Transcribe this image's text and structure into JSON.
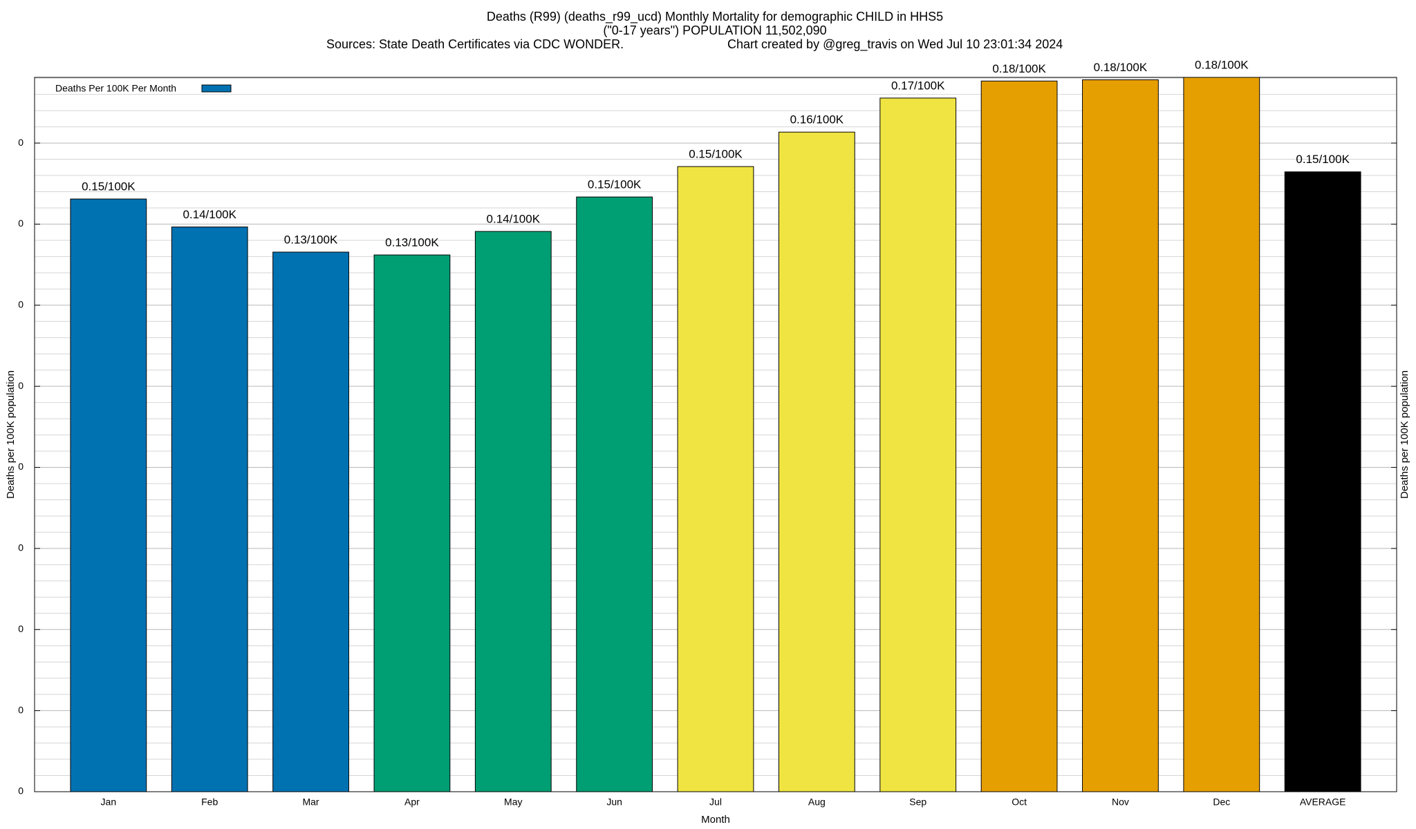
{
  "chart_data": {
    "type": "bar",
    "title": "Deaths (R99) (deaths_r99_ucd) Monthly Mortality for demographic CHILD in HHS5",
    "subtitle": "(\"0-17 years\") POPULATION 11,502,090",
    "sources": "Sources: State Death Certificates via CDC WONDER.",
    "credit": "Chart created by @greg_travis on Wed Jul 10 23:01:34 2024",
    "x_label": "Month",
    "y_label": "Deaths per 100K population",
    "y2_label": "Deaths per 100K population",
    "categories": [
      "Jan",
      "Feb",
      "Mar",
      "Apr",
      "May",
      "Jun",
      "Jul",
      "Aug",
      "Sep",
      "Oct",
      "Nov",
      "Dec",
      "AVERAGE"
    ],
    "series": [
      {
        "name": "Deaths Per 100K Per Month",
        "color": "#0072b2",
        "colors": [
          "#0072b2",
          "#0072b2",
          "#0072b2",
          "#009e73",
          "#009e73",
          "#009e73",
          "#f0e442",
          "#f0e442",
          "#f0e442",
          "#e69f00",
          "#e69f00",
          "#e69f00",
          "#000000"
        ],
        "values": [
          0.1462,
          0.1393,
          0.1331,
          0.1324,
          0.1382,
          0.1467,
          0.1542,
          0.1627,
          0.1711,
          0.1753,
          0.1756,
          0.1762,
          0.1529
        ],
        "value_labels": [
          "0.15/100K",
          "0.14/100K",
          "0.13/100K",
          "0.13/100K",
          "0.14/100K",
          "0.15/100K",
          "0.15/100K",
          "0.16/100K",
          "0.17/100K",
          "0.18/100K",
          "0.18/100K",
          "0.18/100K",
          "0.15/100K"
        ]
      }
    ],
    "ylim": [
      0,
      0.1762
    ],
    "yticks": [
      0,
      {
        "value": 0.02,
        "label": "0"
      },
      {
        "value": 0.04,
        "label": "0"
      },
      {
        "value": 0.06,
        "label": "0"
      },
      {
        "value": 0.08,
        "label": "0"
      },
      {
        "value": 0.1,
        "label": "0"
      },
      {
        "value": 0.12,
        "label": "0"
      },
      {
        "value": 0.14,
        "label": "0"
      },
      {
        "value": 0.16,
        "label": "0"
      }
    ],
    "grid": true,
    "legend": "top-left"
  }
}
